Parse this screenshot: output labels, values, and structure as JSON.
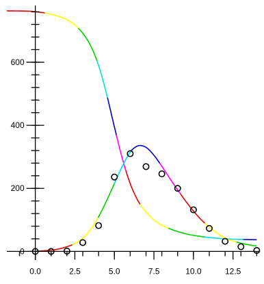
{
  "chart_data": {
    "type": "line",
    "title": "",
    "xlabel": "",
    "ylabel": "",
    "xlim": [
      -1.8,
      14.2
    ],
    "ylim": [
      -10,
      780
    ],
    "x_ticks": [
      0.0,
      2.5,
      5.0,
      7.5,
      10.0,
      12.5
    ],
    "x_tick_labels": [
      "0.0",
      "2.5",
      "5.0",
      "7.5",
      "10.0",
      "12.5"
    ],
    "x_minor_step": 1.0,
    "y_ticks": [
      0,
      200,
      400,
      600
    ],
    "y_tick_labels": [
      "0",
      "200",
      "400",
      "600"
    ],
    "y_minor_step": 40,
    "grid": false,
    "legend": "none",
    "segment_colors": [
      "#e00000",
      "#ffff00",
      "#00d000",
      "#00e0e0",
      "#0000cc",
      "#ff00ff"
    ],
    "series": [
      {
        "style": "line",
        "x": [
          -1.8,
          -0.5,
          0,
          0.5,
          1,
          1.5,
          2,
          2.5,
          3,
          3.5,
          4,
          4.5,
          5,
          5.5,
          6,
          6.5,
          7,
          7.5,
          8,
          8.5,
          9,
          9.5,
          10,
          11,
          12,
          13,
          14
        ],
        "y": [
          763,
          762,
          760,
          757,
          752,
          745,
          735,
          718,
          692,
          652,
          590,
          500,
          395,
          295,
          215,
          160,
          125,
          100,
          83,
          72,
          63,
          56,
          51,
          44,
          40,
          38,
          37
        ]
      },
      {
        "style": "line",
        "x": [
          0,
          0.5,
          1,
          1.5,
          2,
          2.5,
          3,
          3.5,
          4,
          4.5,
          5,
          5.5,
          6,
          6.5,
          7,
          7.5,
          8,
          8.5,
          9,
          9.5,
          10,
          10.5,
          11,
          11.5,
          12,
          12.5,
          13,
          13.5,
          14
        ],
        "y": [
          0,
          2,
          4,
          8,
          15,
          25,
          42,
          70,
          110,
          160,
          215,
          270,
          315,
          335,
          330,
          305,
          270,
          232,
          195,
          160,
          128,
          100,
          77,
          58,
          42,
          33,
          26,
          21,
          17
        ]
      },
      {
        "style": "markers",
        "x": [
          0,
          1,
          2,
          3,
          4,
          5,
          6,
          7,
          8,
          9,
          10,
          11,
          12,
          13,
          14
        ],
        "y": [
          0,
          0,
          1,
          28,
          82,
          236,
          310,
          269,
          246,
          200,
          132,
          73,
          32,
          15,
          3
        ]
      }
    ]
  }
}
